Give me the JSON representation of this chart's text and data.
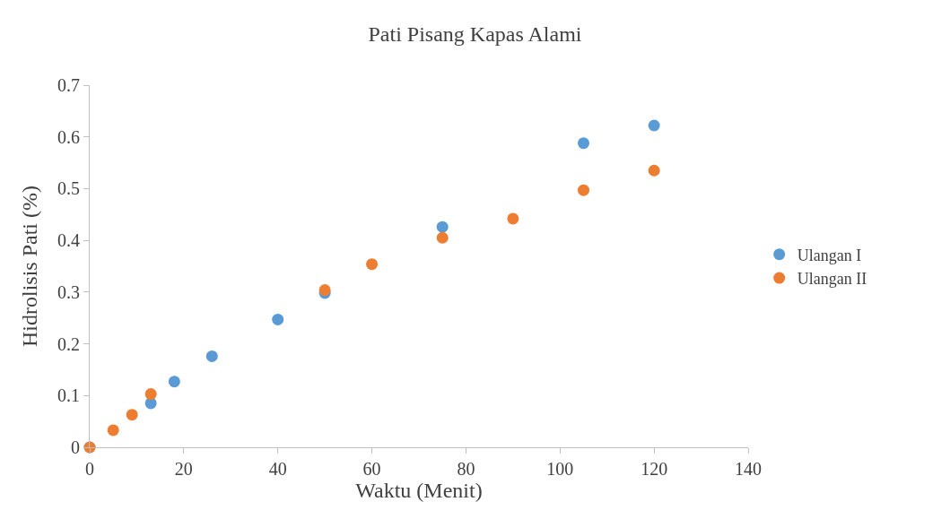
{
  "chart_data": {
    "type": "scatter",
    "title": "Pati Pisang Kapas Alami",
    "xlabel": "Waktu (Menit)",
    "ylabel": "Hidrolisis Pati (%)",
    "series": [
      {
        "name": "Ulangan I",
        "color": "#5b9bd5",
        "x": [
          0,
          13,
          18,
          26,
          40,
          50,
          75,
          105,
          120
        ],
        "values": [
          0,
          0.085,
          0.127,
          0.176,
          0.247,
          0.298,
          0.426,
          0.588,
          0.622
        ]
      },
      {
        "name": "Ulangan II",
        "color": "#ed7d31",
        "x": [
          0,
          5,
          9,
          13,
          50,
          60,
          75,
          90,
          105,
          120
        ],
        "values": [
          0,
          0.033,
          0.063,
          0.103,
          0.304,
          0.354,
          0.405,
          0.442,
          0.497,
          0.535
        ]
      }
    ],
    "xlim": [
      0,
      140
    ],
    "xticks": [
      0,
      20,
      40,
      60,
      80,
      100,
      120,
      140
    ],
    "ylim": [
      0,
      0.7
    ],
    "yticks": [
      0,
      0.1,
      0.2,
      0.3,
      0.4,
      0.5,
      0.6,
      0.7
    ],
    "marker": "circle",
    "grid": false,
    "legend": "right"
  }
}
